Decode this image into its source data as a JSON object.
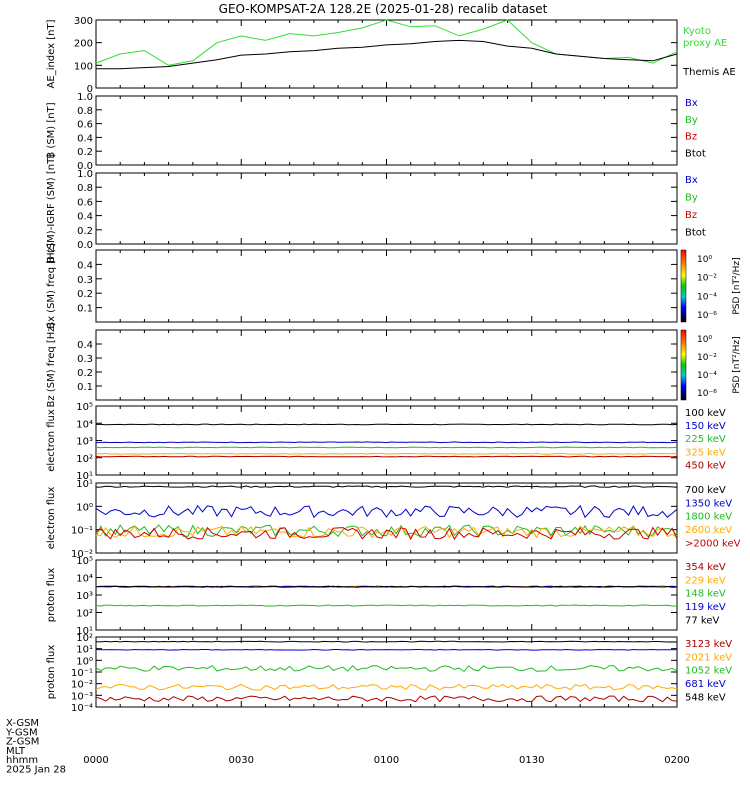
{
  "title": "GEO-KOMPSAT-2A 128.2E (2025-01-28) recalib dataset",
  "x_axis": {
    "ticks": [
      "0000",
      "0030",
      "0100",
      "0130",
      "0200"
    ],
    "row_labels": [
      "X-GSM",
      "Y-GSM",
      "Z-GSM",
      "MLT",
      "hhmm",
      "2025 Jan 28"
    ]
  },
  "chart_data": [
    {
      "panel": "ae",
      "type": "line",
      "ylabel": "AE_index [nT]",
      "ylim": [
        0,
        300
      ],
      "yticks": [
        "0",
        "100",
        "200",
        "300"
      ],
      "x": [
        "00:00",
        "00:05",
        "00:10",
        "00:15",
        "00:20",
        "00:25",
        "00:30",
        "00:35",
        "00:40",
        "00:45",
        "00:50",
        "00:55",
        "01:00",
        "01:05",
        "01:10",
        "01:15",
        "01:20",
        "01:25",
        "01:30",
        "01:35",
        "01:40",
        "01:45",
        "01:50",
        "01:55",
        "02:00"
      ],
      "series": [
        {
          "name": "Kyoto proxy AE",
          "color": "#33dd33",
          "values": [
            110,
            150,
            165,
            100,
            120,
            200,
            230,
            210,
            240,
            230,
            245,
            265,
            300,
            270,
            275,
            230,
            260,
            300,
            200,
            150,
            140,
            130,
            135,
            110,
            160
          ]
        },
        {
          "name": "Themis AE",
          "color": "#000000",
          "values": [
            85,
            85,
            90,
            95,
            110,
            125,
            145,
            150,
            160,
            165,
            175,
            180,
            190,
            195,
            205,
            210,
            205,
            185,
            175,
            150,
            140,
            130,
            125,
            120,
            150
          ]
        }
      ],
      "legend": [
        "Kyoto",
        "proxy AE",
        "Themis AE"
      ]
    },
    {
      "panel": "b_sm",
      "type": "line",
      "ylabel": "B (SM) [nT]",
      "ylim": [
        0,
        1
      ],
      "yticks": [
        "0.0",
        "0.2",
        "0.4",
        "0.6",
        "0.8",
        "1.0"
      ],
      "series": [
        {
          "name": "Bx",
          "color": "#0000cc",
          "values": []
        },
        {
          "name": "By",
          "color": "#22bb22",
          "values": []
        },
        {
          "name": "Bz",
          "color": "#cc0000",
          "values": []
        },
        {
          "name": "Btot",
          "color": "#000000",
          "values": []
        }
      ]
    },
    {
      "panel": "b_igrf",
      "type": "line",
      "ylabel": "B (SM)-IGRF (SM) [nT]",
      "ylim": [
        0,
        1
      ],
      "yticks": [
        "0.0",
        "0.2",
        "0.4",
        "0.6",
        "0.8",
        "1.0"
      ],
      "series": [
        {
          "name": "Bx",
          "color": "#0000cc",
          "values": []
        },
        {
          "name": "By",
          "color": "#22bb22",
          "values": []
        },
        {
          "name": "Bz",
          "color": "#cc0000",
          "values": []
        },
        {
          "name": "Btot",
          "color": "#000000",
          "values": []
        }
      ]
    },
    {
      "panel": "spec_bx",
      "type": "heatmap",
      "ylabel": "Bx (SM) freq [Hz]",
      "ylim": [
        0,
        0.5
      ],
      "yticks": [
        "0.1",
        "0.2",
        "0.3",
        "0.4"
      ],
      "colorbar": {
        "label": "PSD [nT²/Hz]",
        "ticks": [
          "10⁰",
          "10⁻²",
          "10⁻⁴",
          "10⁻⁶"
        ]
      }
    },
    {
      "panel": "spec_bz",
      "type": "heatmap",
      "ylabel": "Bz (SM) freq [Hz]",
      "ylim": [
        0,
        0.5
      ],
      "yticks": [
        "0.1",
        "0.2",
        "0.3",
        "0.4"
      ],
      "colorbar": {
        "label": "PSD [nT²/Hz]",
        "ticks": [
          "10⁰",
          "10⁻²",
          "10⁻⁴",
          "10⁻⁶"
        ]
      }
    },
    {
      "panel": "elec1",
      "type": "line",
      "ylabel": "electron flux",
      "yscale": "log",
      "ylim": [
        1,
        1000000
      ],
      "yticks": [
        "10⁵",
        "10⁴",
        "10³",
        "10²",
        "10¹"
      ],
      "series": [
        {
          "name": "100 keV",
          "color": "#000000",
          "values": [
            25000
          ]
        },
        {
          "name": "150 keV",
          "color": "#0000cc",
          "values": [
            700
          ]
        },
        {
          "name": "225 keV",
          "color": "#22bb22",
          "values": [
            250
          ]
        },
        {
          "name": "325 keV",
          "color": "#ffaa00",
          "values": [
            70
          ]
        },
        {
          "name": "450 keV",
          "color": "#aa0000",
          "values": [
            40
          ]
        }
      ]
    },
    {
      "panel": "elec2",
      "type": "line",
      "ylabel": "electron flux",
      "yscale": "log",
      "ylim": [
        0.01,
        10
      ],
      "yticks": [
        "10¹",
        "10⁰",
        "10⁻¹",
        "10⁻²"
      ],
      "series": [
        {
          "name": "700 keV",
          "color": "#000000",
          "values": [
            7
          ]
        },
        {
          "name": "1350 keV",
          "color": "#0000cc",
          "values": [
            0.6
          ]
        },
        {
          "name": "1800 keV",
          "color": "#22bb22",
          "values": [
            0.09
          ]
        },
        {
          "name": "2600 keV",
          "color": "#ffaa00",
          "values": [
            0.08
          ]
        },
        {
          "name": ">2000 keV",
          "color": "#cc0000",
          "values": [
            0.07
          ]
        }
      ]
    },
    {
      "panel": "prot1",
      "type": "line",
      "ylabel": "proton flux",
      "yscale": "log",
      "ylim": [
        10,
        100000
      ],
      "yticks": [
        "10⁵",
        "10⁴",
        "10³",
        "10²",
        "10¹"
      ],
      "series": [
        {
          "name": "354 keV",
          "color": "#aa0000",
          "values": [
            3000
          ]
        },
        {
          "name": "229 keV",
          "color": "#ffaa00",
          "values": [
            3000
          ]
        },
        {
          "name": "148 keV",
          "color": "#22bb22",
          "values": [
            250
          ]
        },
        {
          "name": "119 keV",
          "color": "#0000cc",
          "values": [
            3000
          ]
        },
        {
          "name": "77 keV",
          "color": "#000000",
          "values": [
            3000
          ]
        }
      ]
    },
    {
      "panel": "prot2",
      "type": "line",
      "ylabel": "proton flux",
      "yscale": "log",
      "ylim": [
        0.0001,
        100
      ],
      "yticks": [
        "10²",
        "10¹",
        "10⁰",
        "10⁻¹",
        "10⁻²",
        "10⁻³",
        "10⁻⁴"
      ],
      "series": [
        {
          "name": "3123 keV",
          "color": "#aa0000",
          "values": [
            0.0005
          ]
        },
        {
          "name": "2021 keV",
          "color": "#ffaa00",
          "values": [
            0.005
          ]
        },
        {
          "name": "1052 keV",
          "color": "#22bb22",
          "values": [
            0.2
          ]
        },
        {
          "name": "681 keV",
          "color": "#0000cc",
          "values": [
            8
          ]
        },
        {
          "name": "548 keV",
          "color": "#000000",
          "values": [
            40
          ]
        }
      ]
    }
  ]
}
